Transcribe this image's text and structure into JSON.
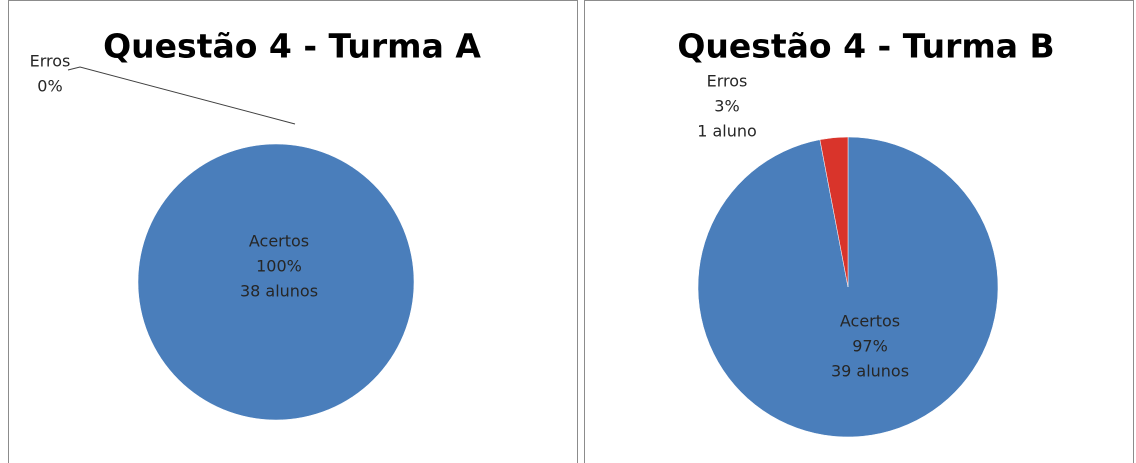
{
  "chart_data": [
    {
      "type": "pie",
      "title": "Questão 4 - Turma A",
      "categories": [
        "Acertos",
        "Erros"
      ],
      "values": [
        100,
        0
      ],
      "value_labels": [
        "100%",
        "0%"
      ],
      "count_labels": [
        "38 alunos",
        null
      ],
      "colors": [
        "#4a7ebb",
        "#d9342b"
      ]
    },
    {
      "type": "pie",
      "title": "Questão 4 - Turma B",
      "categories": [
        "Acertos",
        "Erros"
      ],
      "values": [
        97,
        3
      ],
      "value_labels": [
        "97%",
        "3%"
      ],
      "count_labels": [
        "39 alunos",
        "1 aluno"
      ],
      "colors": [
        "#4a7ebb",
        "#d9342b"
      ]
    }
  ]
}
